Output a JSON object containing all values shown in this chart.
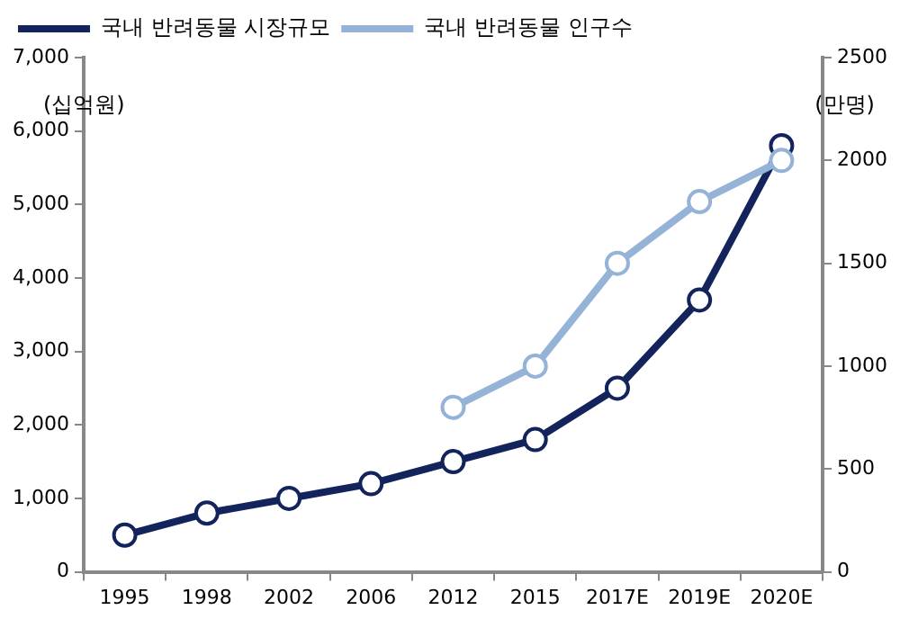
{
  "chart_data": {
    "type": "line",
    "categories": [
      "1995",
      "1998",
      "2002",
      "2006",
      "2012",
      "2015",
      "2017E",
      "2019E",
      "2020E"
    ],
    "ylabel": "(십억원)",
    "y2label": "(만명)",
    "series": [
      {
        "name": "국내 반려동물 시장규모",
        "color": "#13235b",
        "values": [
          500,
          800,
          1000,
          1200,
          1500,
          1800,
          2500,
          3700,
          5800
        ]
      },
      {
        "name": "국내 반려동물 인구수",
        "color": "#95b3d7",
        "axis": "y2",
        "values": [
          null,
          null,
          null,
          null,
          800,
          1000,
          1500,
          1800,
          2000
        ]
      }
    ],
    "ylim": [
      0,
      7000
    ],
    "yticks": [
      0,
      {
        "value": 1000,
        "label": "1,000"
      },
      {
        "value": 2000,
        "label": "2,000"
      },
      {
        "value": 3000,
        "label": "3,000"
      },
      {
        "value": 4000,
        "label": "4,000"
      },
      {
        "value": 5000,
        "label": "5,000"
      },
      {
        "value": 6000,
        "label": "6,000"
      },
      {
        "value": 7000,
        "label": "7,000"
      }
    ],
    "y2lim": [
      0,
      2500
    ],
    "y2ticks": [
      0,
      500,
      1000,
      1500,
      2000,
      2500
    ],
    "grid": false,
    "legend": "top left",
    "marker": "circle",
    "line_style": "solid"
  }
}
